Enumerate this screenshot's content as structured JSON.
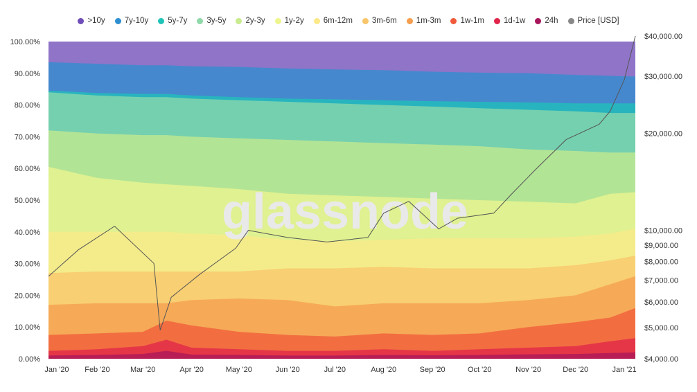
{
  "legend": [
    {
      "name": ">10y",
      "color": "#6f4db8"
    },
    {
      "name": "7y-10y",
      "color": "#2d8fd0"
    },
    {
      "name": "5y-7y",
      "color": "#1fc3b8"
    },
    {
      "name": "3y-5y",
      "color": "#8fd9a9"
    },
    {
      "name": "2y-3y",
      "color": "#c7eb8e"
    },
    {
      "name": "1y-2y",
      "color": "#eef58d"
    },
    {
      "name": "6m-12m",
      "color": "#fbe98a"
    },
    {
      "name": "3m-6m",
      "color": "#f9c56a"
    },
    {
      "name": "1m-3m",
      "color": "#f59e4f"
    },
    {
      "name": "1w-1m",
      "color": "#f05a3a"
    },
    {
      "name": "1d-1w",
      "color": "#e0244a"
    },
    {
      "name": "24h",
      "color": "#a8155a"
    },
    {
      "name": "Price [USD]",
      "color": "#888888"
    }
  ],
  "watermark": "glassnode",
  "chart_data": {
    "type": "area",
    "stacked": true,
    "x": [
      "2020-01-01",
      "2020-02-01",
      "2020-03-01",
      "2020-03-16",
      "2020-04-01",
      "2020-05-01",
      "2020-06-01",
      "2020-07-01",
      "2020-08-01",
      "2020-09-01",
      "2020-10-01",
      "2020-11-01",
      "2020-12-01",
      "2020-12-23",
      "2021-01-01"
    ],
    "x_tick_labels": [
      "Jan '20",
      "Feb '20",
      "Mar '20",
      "Apr '20",
      "May '20",
      "Jun '20",
      "Jul '20",
      "Aug '20",
      "Sep '20",
      "Oct '20",
      "Nov '20",
      "Dec '20",
      "Jan '21"
    ],
    "y_left": {
      "ticks": [
        "0.00%",
        "10.00%",
        "20.00%",
        "30.00%",
        "40.00%",
        "50.00%",
        "60.00%",
        "70.00%",
        "80.00%",
        "90.00%",
        "100.00%"
      ],
      "range": [
        0,
        100
      ]
    },
    "y_right": {
      "scale": "log",
      "ticks": [
        "$4,000.00",
        "$5,000.00",
        "$6,000.00",
        "$7,000.00",
        "$8,000.00",
        "$9,000.00",
        "$10,000.00",
        "$20,000.00",
        "$30,000.00",
        "$40,000.00"
      ],
      "range": [
        4000,
        40000
      ]
    },
    "series_upper_bounds_pct": [
      {
        "name": "24h",
        "values": [
          1.0,
          1.2,
          1.5,
          2.5,
          1.3,
          1.2,
          1.0,
          1.0,
          1.2,
          1.1,
          1.2,
          1.4,
          1.5,
          1.8,
          2.0
        ]
      },
      {
        "name": "1d-1w",
        "values": [
          2.5,
          3.0,
          4.0,
          6.0,
          3.5,
          3.0,
          2.5,
          2.5,
          3.0,
          2.5,
          3.0,
          3.5,
          4.0,
          5.5,
          6.5
        ]
      },
      {
        "name": "1w-1m",
        "values": [
          7.5,
          8.0,
          8.5,
          12.0,
          10.5,
          8.5,
          7.5,
          7.0,
          8.0,
          7.5,
          8.0,
          10.0,
          11.5,
          13.0,
          16.0
        ]
      },
      {
        "name": "1m-3m",
        "values": [
          17.0,
          17.5,
          17.5,
          17.5,
          18.5,
          19.0,
          18.5,
          16.5,
          17.5,
          17.5,
          17.5,
          18.5,
          20.0,
          23.5,
          26.0
        ]
      },
      {
        "name": "3m-6m",
        "values": [
          27.0,
          27.5,
          27.5,
          27.5,
          27.5,
          27.5,
          28.5,
          28.5,
          29.0,
          28.5,
          28.5,
          28.5,
          29.5,
          31.0,
          32.5
        ]
      },
      {
        "name": "6m-12m",
        "values": [
          40.0,
          40.0,
          40.0,
          40.0,
          39.5,
          39.0,
          37.5,
          37.0,
          37.5,
          38.0,
          38.0,
          38.0,
          38.5,
          39.5,
          41.0
        ]
      },
      {
        "name": "1y-2y",
        "values": [
          60.5,
          57.0,
          55.5,
          55.0,
          54.5,
          53.5,
          52.0,
          51.5,
          51.0,
          50.5,
          50.0,
          49.5,
          49.0,
          52.0,
          52.5
        ]
      },
      {
        "name": "2y-3y",
        "values": [
          72.0,
          71.0,
          70.5,
          70.5,
          70.0,
          69.5,
          69.0,
          68.5,
          68.0,
          67.5,
          67.0,
          66.0,
          65.5,
          65.0,
          65.0
        ]
      },
      {
        "name": "3y-5y",
        "values": [
          84.0,
          83.0,
          82.5,
          82.5,
          82.0,
          81.5,
          81.0,
          80.5,
          80.0,
          79.5,
          79.0,
          78.5,
          78.0,
          77.5,
          77.5
        ]
      },
      {
        "name": "5y-7y",
        "values": [
          84.5,
          83.8,
          83.5,
          83.5,
          83.0,
          82.5,
          82.0,
          81.8,
          81.5,
          81.2,
          81.0,
          80.8,
          80.5,
          80.5,
          80.5
        ]
      },
      {
        "name": "7y-10y",
        "values": [
          93.5,
          93.0,
          92.5,
          92.5,
          92.2,
          92.0,
          91.5,
          91.2,
          91.0,
          90.5,
          90.2,
          90.0,
          89.5,
          89.2,
          89.0
        ]
      },
      {
        "name": ">10y",
        "values": [
          100,
          100,
          100,
          100,
          100,
          100,
          100,
          100,
          100,
          100,
          100,
          100,
          100,
          100,
          100
        ]
      }
    ],
    "price_usd": {
      "x": [
        "2020-01-01",
        "2020-01-20",
        "2020-02-12",
        "2020-03-08",
        "2020-03-12",
        "2020-03-19",
        "2020-04-06",
        "2020-04-29",
        "2020-05-07",
        "2020-06-01",
        "2020-06-26",
        "2020-07-22",
        "2020-08-01",
        "2020-08-17",
        "2020-09-05",
        "2020-09-17",
        "2020-10-10",
        "2020-10-21",
        "2020-11-06",
        "2020-11-25",
        "2020-12-16",
        "2020-12-23",
        "2021-01-01",
        "2021-01-08"
      ],
      "values": [
        7200,
        8700,
        10300,
        7900,
        4900,
        6200,
        7300,
        8800,
        10000,
        9500,
        9200,
        9500,
        11300,
        12300,
        10100,
        10900,
        11300,
        12900,
        15500,
        19100,
        21300,
        23400,
        29300,
        40000
      ]
    }
  }
}
